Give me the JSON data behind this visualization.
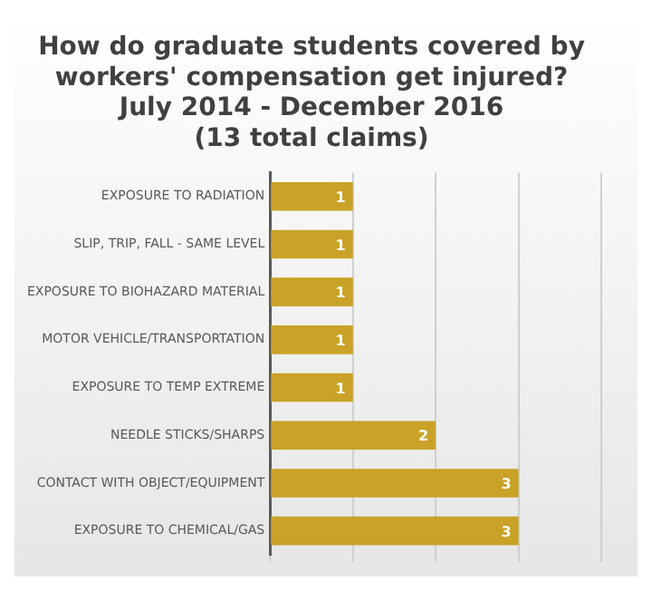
{
  "chart_data": {
    "type": "bar",
    "orientation": "horizontal",
    "title": "How do graduate students covered by\nworkers' compensation get injured?\nJuly 2014 - December 2016\n(13 total claims)",
    "categories": [
      "EXPOSURE TO RADIATION",
      "SLIP, TRIP, FALL - SAME LEVEL",
      "EXPOSURE TO BIOHAZARD MATERIAL",
      "MOTOR VEHICLE/TRANSPORTATION",
      "EXPOSURE TO TEMP EXTREME",
      "NEEDLE STICKS/SHARPS",
      "CONTACT WITH OBJECT/EQUIPMENT",
      "EXPOSURE TO CHEMICAL/GAS"
    ],
    "values": [
      1,
      1,
      1,
      1,
      1,
      2,
      3,
      3
    ],
    "color": "#c9a227",
    "xlim": [
      0,
      4
    ],
    "xticks": [
      {
        "value": 0,
        "label": null
      },
      {
        "value": 1,
        "label": null
      },
      {
        "value": 2,
        "label": null
      },
      {
        "value": 3,
        "label": null
      },
      {
        "value": 4,
        "label": null
      }
    ],
    "grid": "x",
    "tick_labels": "y",
    "data_labels": true,
    "legend": false
  }
}
